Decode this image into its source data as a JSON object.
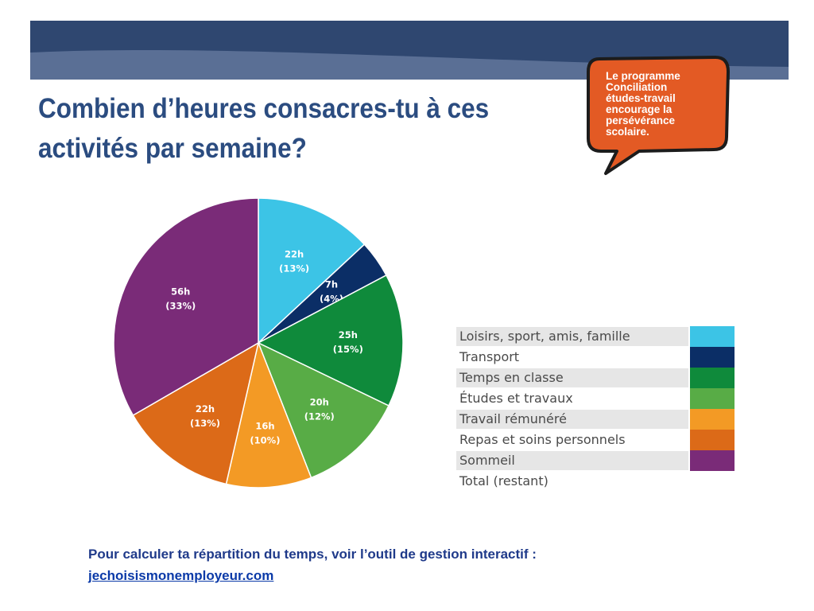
{
  "slide": {
    "title": "Combien d’heures consacres-tu à ces activités par semaine?",
    "bubble_lines": [
      "Le programme",
      "Conciliation",
      "études-travail",
      "encourage la",
      "persévérance",
      "scolaire."
    ],
    "footer_text": "Pour calculer ta répartition du temps, voir l’outil de gestion interactif :",
    "footer_link": "jechoisismonemployeur.com"
  },
  "colors": {
    "banner_dark": "#2f4770",
    "banner_light": "#5a6f95",
    "bubble_fill": "#e35a24",
    "bubble_border": "#1c1c1c",
    "title": "#2b4c80"
  },
  "chart_data": {
    "type": "pie",
    "title": "",
    "slices": [
      {
        "category": "Loisirs, sport, amis, famille",
        "hours_label": "22h",
        "percent_label": "(13%)",
        "value": 22,
        "color": "#3cc4e6"
      },
      {
        "category": "Transport",
        "hours_label": "7h",
        "percent_label": "(4%)",
        "value": 7,
        "color": "#0b2e66"
      },
      {
        "category": "Temps en classe",
        "hours_label": "25h",
        "percent_label": "(15%)",
        "value": 25,
        "color": "#0f8a3b"
      },
      {
        "category": "Études et travaux",
        "hours_label": "20h",
        "percent_label": "(12%)",
        "value": 20,
        "color": "#58ac46"
      },
      {
        "category": "Travail rémunéré",
        "hours_label": "16h",
        "percent_label": "(10%)",
        "value": 16,
        "color": "#f39a25"
      },
      {
        "category": "Repas et soins personnels",
        "hours_label": "22h",
        "percent_label": "(13%)",
        "value": 22,
        "color": "#dc6a18"
      },
      {
        "category": "Sommeil",
        "hours_label": "56h",
        "percent_label": "(33%)",
        "value": 56,
        "color": "#7a2b78"
      }
    ],
    "legend": [
      {
        "label": "Loisirs, sport, amis, famille",
        "color": "#3cc4e6"
      },
      {
        "label": "Transport",
        "color": "#0b2e66"
      },
      {
        "label": "Temps en classe",
        "color": "#0f8a3b"
      },
      {
        "label": "Études et travaux",
        "color": "#58ac46"
      },
      {
        "label": "Travail rémunéré",
        "color": "#f39a25"
      },
      {
        "label": "Repas et soins personnels",
        "color": "#dc6a18"
      },
      {
        "label": "Sommeil",
        "color": "#7a2b78"
      },
      {
        "label": "Total (restant)",
        "color": ""
      }
    ],
    "legend_position": "right"
  }
}
